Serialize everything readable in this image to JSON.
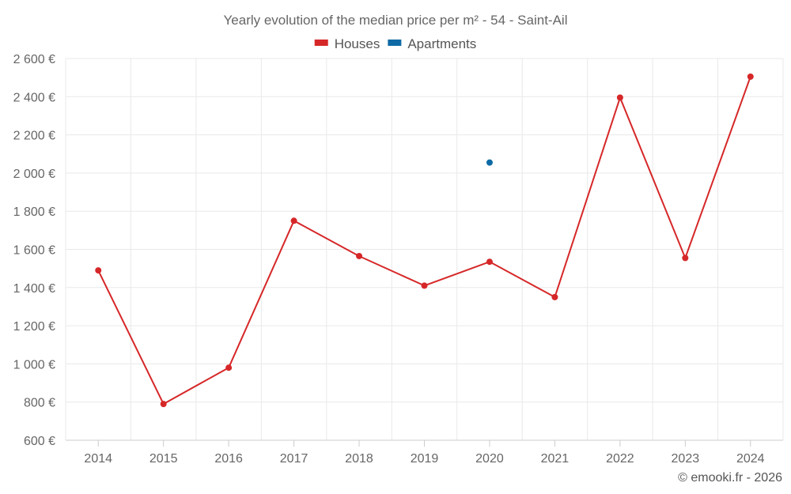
{
  "chart_data": {
    "type": "line",
    "title": "Yearly evolution of the median price per m² - 54 - Saint-Ail",
    "categories": [
      "2014",
      "2015",
      "2016",
      "2017",
      "2018",
      "2019",
      "2020",
      "2021",
      "2022",
      "2023",
      "2024"
    ],
    "ylim": [
      600,
      2600
    ],
    "yticks": [
      600,
      800,
      1000,
      1200,
      1400,
      1600,
      1800,
      2000,
      2200,
      2400,
      2600
    ],
    "ytick_labels": [
      "600 €",
      "800 €",
      "1 000 €",
      "1 200 €",
      "1 400 €",
      "1 600 €",
      "1 800 €",
      "2 000 €",
      "2 200 €",
      "2 400 €",
      "2 600 €"
    ],
    "xlabel": "",
    "ylabel": "",
    "grid": true,
    "legend_position": "top-center",
    "series": [
      {
        "name": "Houses",
        "color": "#d62728",
        "values": [
          1490,
          790,
          980,
          1750,
          1565,
          1410,
          1535,
          1350,
          2395,
          1555,
          2505
        ]
      },
      {
        "name": "Apartments",
        "color": "#0e6aa5",
        "values": [
          null,
          null,
          null,
          null,
          null,
          null,
          2055,
          null,
          null,
          null,
          null
        ]
      }
    ]
  },
  "credit": "© emooki.fr - 2026"
}
